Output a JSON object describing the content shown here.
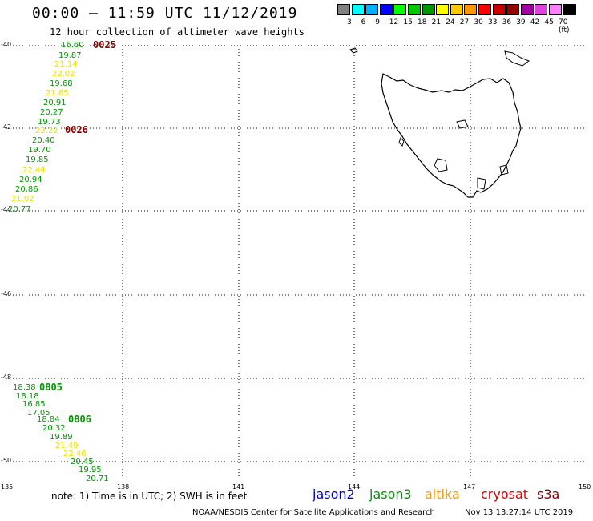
{
  "title": "00:00 – 11:59 UTC 11/12/2019",
  "subtitle": "12 hour collection of altimeter wave heights",
  "colorbar": {
    "labels": [
      "3",
      "6",
      "9",
      "12",
      "15",
      "18",
      "21",
      "24",
      "27",
      "30",
      "33",
      "36",
      "39",
      "42",
      "45",
      "70 (ft)"
    ],
    "colors": [
      "#808080",
      "#00ffff",
      "#00b0ff",
      "#0000ff",
      "#00ff00",
      "#00c800",
      "#009600",
      "#ffff00",
      "#ffc800",
      "#ff9600",
      "#ff0000",
      "#c80000",
      "#960000",
      "#a000a0",
      "#e040e0",
      "#ff80ff",
      "#000000"
    ]
  },
  "axes": {
    "lat_labels": [
      "-40",
      "-42",
      "-44",
      "-46",
      "-48",
      "-50"
    ],
    "lon_labels": [
      "135",
      "138",
      "141",
      "144",
      "147",
      "150"
    ]
  },
  "tracks": [
    {
      "pass_label": "0025",
      "pass_color": "#8b0000",
      "points": [
        {
          "v": "16.60",
          "c": "#009600"
        },
        {
          "v": "19.87",
          "c": "#009600"
        },
        {
          "v": "21.14",
          "c": "#f0e000"
        },
        {
          "v": "22.02",
          "c": "#f0e000"
        },
        {
          "v": "19.68",
          "c": "#009600"
        },
        {
          "v": "21.85",
          "c": "#f0e000"
        },
        {
          "v": "20.91",
          "c": "#009600"
        },
        {
          "v": "20.27",
          "c": "#009600"
        },
        {
          "v": "19.73",
          "c": "#009600"
        },
        {
          "v": "22.22",
          "c": "#f0e000"
        },
        {
          "v": "20.40",
          "c": "#009600"
        },
        {
          "v": "19.70",
          "c": "#009600"
        },
        {
          "v": "19.85",
          "c": "#009600"
        },
        {
          "v": "22.44",
          "c": "#f0e000"
        },
        {
          "v": "20.94",
          "c": "#009600"
        },
        {
          "v": "20.86",
          "c": "#009600"
        },
        {
          "v": "21.02",
          "c": "#f0e000"
        },
        {
          "v": "20.77",
          "c": "#009600"
        }
      ]
    },
    {
      "pass_label": "0026",
      "pass_color": "#8b0000",
      "points": []
    },
    {
      "pass_label": "0805",
      "pass_color": "#009600",
      "points": [
        {
          "v": "18.38",
          "c": "#009600"
        },
        {
          "v": "18.18",
          "c": "#009600"
        },
        {
          "v": "16.85",
          "c": "#009600"
        },
        {
          "v": "17.05",
          "c": "#009600"
        },
        {
          "v": "18.84",
          "c": "#009600"
        },
        {
          "v": "20.32",
          "c": "#009600"
        },
        {
          "v": "19.89",
          "c": "#009600"
        },
        {
          "v": "21.49",
          "c": "#f0e000"
        },
        {
          "v": "22.46",
          "c": "#f0e000"
        },
        {
          "v": "20.45",
          "c": "#009600"
        },
        {
          "v": "19.95",
          "c": "#009600"
        },
        {
          "v": "20.71",
          "c": "#009600"
        }
      ]
    },
    {
      "pass_label": "0806",
      "pass_color": "#009600",
      "points": []
    }
  ],
  "note": "note:  1) Time is in UTC;  2) SWH is in feet",
  "satellites": [
    {
      "name": "jason2",
      "color": "#0000cc"
    },
    {
      "name": "jason3",
      "color": "#009600"
    },
    {
      "name": "altika",
      "color": "#ff9600"
    },
    {
      "name": "cryosat",
      "color": "#e00000"
    },
    {
      "name": "s3a",
      "color": "#8b0000"
    }
  ],
  "credit": "NOAA/NESDIS Center for Satellite Applications and Research",
  "generated": "Nov 13 13:27:14 UTC 2019"
}
